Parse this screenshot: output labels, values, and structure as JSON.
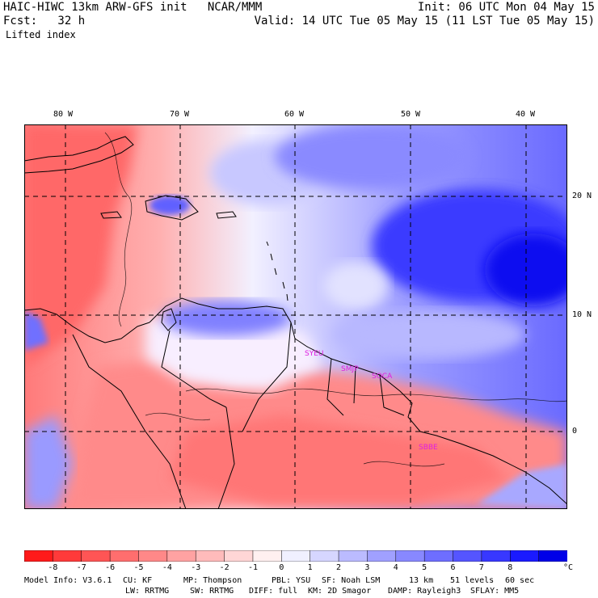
{
  "header": {
    "title": "HAIC-HIWC 13km ARW-GFS init   NCAR/MMM",
    "init": "Init: 06 UTC Mon 04 May 15",
    "fcst": "Fcst:   32 h",
    "valid": "Valid: 14 UTC Tue 05 May 15 (11 LST Tue 05 May 15)",
    "field": "Lifted index"
  },
  "map": {
    "lon_labels": [
      "80 W",
      "70 W",
      "60 W",
      "50 W",
      "40 W"
    ],
    "lat_labels": [
      "20 N",
      "10 N",
      "0"
    ],
    "stations": [
      "SYEU",
      "SMJP",
      "SOCA",
      "SBBE"
    ]
  },
  "colorbar": {
    "labels": [
      "-8",
      "-7",
      "-6",
      "-5",
      "-4",
      "-3",
      "-2",
      "-1",
      "0",
      "1",
      "2",
      "3",
      "4",
      "5",
      "6",
      "7",
      "8"
    ],
    "unit": "°C",
    "colors": [
      "#ff1a1a",
      "#ff3a3a",
      "#ff5555",
      "#ff6e6e",
      "#ff8888",
      "#ffa2a2",
      "#ffbbbb",
      "#ffd6d6",
      "#fff0f0",
      "#f0f0ff",
      "#d6d6ff",
      "#bbbbff",
      "#a0a0ff",
      "#8888ff",
      "#6e6eff",
      "#5555ff",
      "#3838ff",
      "#1a1aff",
      "#0000e8"
    ]
  },
  "model_info": {
    "line1": [
      "Model Info: V3.6.1",
      "CU: KF",
      "MP: Thompson",
      "PBL: YSU",
      "SF: Noah LSM",
      "13 km",
      "51 levels",
      "60 sec"
    ],
    "line2": [
      "LW: RRTMG",
      "SW: RRTMG",
      "DIFF: full",
      "KM: 2D Smagor",
      "DAMP: Rayleigh3",
      "SFLAY: MM5"
    ]
  }
}
